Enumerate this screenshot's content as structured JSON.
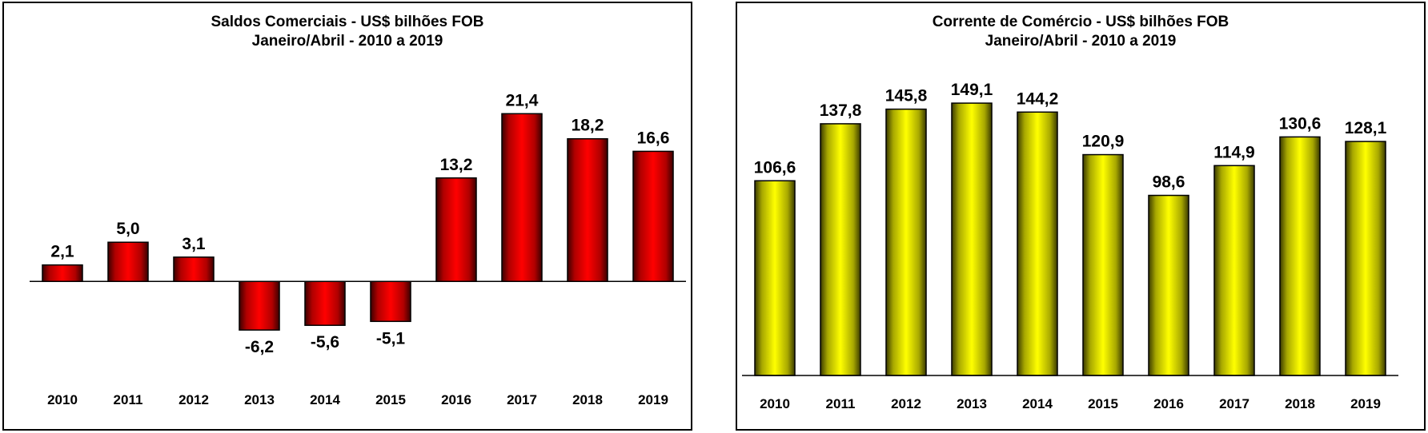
{
  "chart_data": [
    {
      "type": "bar",
      "title": "Saldos Comerciais - US$ bilhões FOB",
      "subtitle": "Janeiro/Abril - 2010 a 2019",
      "categories": [
        "2010",
        "2011",
        "2012",
        "2013",
        "2014",
        "2015",
        "2016",
        "2017",
        "2018",
        "2019"
      ],
      "values": [
        2.1,
        5.0,
        3.1,
        -6.2,
        -5.6,
        -5.1,
        13.2,
        21.4,
        18.2,
        16.6
      ],
      "data_labels": [
        "2,1",
        "5,0",
        "3,1",
        "-6,2",
        "-5,6",
        "-5,1",
        "13,2",
        "21,4",
        "18,2",
        "16,6"
      ],
      "ylim": [
        -12,
        25
      ],
      "grid": false,
      "bar_color": "#ff0000"
    },
    {
      "type": "bar",
      "title": "Corrente de Comércio - US$ bilhões FOB",
      "subtitle": "Janeiro/Abril - 2010 a 2019",
      "categories": [
        "2010",
        "2011",
        "2012",
        "2013",
        "2014",
        "2015",
        "2016",
        "2017",
        "2018",
        "2019"
      ],
      "values": [
        106.6,
        137.8,
        145.8,
        149.1,
        144.2,
        120.9,
        98.6,
        114.9,
        130.6,
        128.1
      ],
      "data_labels": [
        "106,6",
        "137,8",
        "145,8",
        "149,1",
        "144,2",
        "120,9",
        "98,6",
        "114,9",
        "130,6",
        "128,1"
      ],
      "ylim": [
        0,
        185
      ],
      "grid": false,
      "bar_color": "#ffff00"
    }
  ]
}
